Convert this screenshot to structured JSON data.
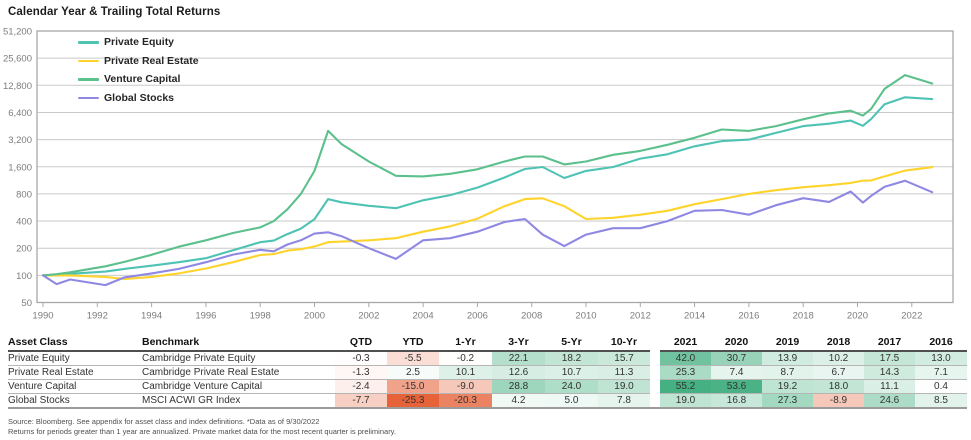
{
  "title": "Calendar Year & Trailing Total Returns",
  "chart_data": {
    "type": "line",
    "y_scale": "log2",
    "grid": "horizontal",
    "legend_position": "top-left-inside",
    "x_range": [
      1989.78,
      2023.5
    ],
    "y_range": [
      50,
      51200
    ],
    "x_ticks": [
      1990,
      1992,
      1994,
      1996,
      1998,
      2000,
      2002,
      2004,
      2006,
      2008,
      2010,
      2012,
      2014,
      2016,
      2018,
      2020,
      2022
    ],
    "y_ticks": [
      51200,
      25600,
      12800,
      6400,
      3200,
      1600,
      800,
      400,
      200,
      100,
      50
    ],
    "y_tick_labels": [
      "51,200",
      "25,600",
      "12,800",
      "6,400",
      "3,200",
      "1,600",
      "800",
      "400",
      "200",
      "100",
      "50"
    ],
    "x": [
      1990,
      1990.5,
      1991,
      1992.3,
      1993,
      1994,
      1995,
      1996,
      1997,
      1998,
      1998.5,
      1999,
      1999.5,
      2000,
      2000.5,
      2001,
      2002,
      2003,
      2004,
      2005,
      2006,
      2007,
      2007.75,
      2008.4,
      2009.2,
      2010,
      2011,
      2012,
      2013,
      2014,
      2015,
      2016,
      2017,
      2018,
      2018.95,
      2019.75,
      2020.2,
      2020.5,
      2021,
      2021.75,
      2022.75
    ],
    "series": [
      {
        "name": "Private Equity",
        "color": "#4ec3b4",
        "values": [
          100,
          101,
          104,
          110,
          118,
          128,
          140,
          155,
          190,
          233,
          243,
          287,
          330,
          420,
          700,
          645,
          590,
          555,
          680,
          775,
          940,
          1215,
          1510,
          1590,
          1200,
          1440,
          1590,
          1970,
          2200,
          2700,
          3080,
          3200,
          3800,
          4520,
          4800,
          5200,
          4550,
          5400,
          7900,
          9430,
          9000
        ]
      },
      {
        "name": "Private Real Estate",
        "color": "#fed42c",
        "values": [
          100,
          100,
          100,
          96,
          91,
          96,
          105,
          119,
          140,
          168,
          172,
          188,
          195,
          209,
          233,
          237,
          245,
          258,
          305,
          350,
          425,
          585,
          700,
          715,
          585,
          421,
          435,
          470,
          520,
          615,
          700,
          800,
          880,
          950,
          1000,
          1060,
          1120,
          1130,
          1250,
          1450,
          1580
        ]
      },
      {
        "name": "Venture Capital",
        "color": "#5cc08d",
        "values": [
          100,
          103,
          108,
          126,
          141,
          169,
          208,
          245,
          295,
          340,
          400,
          540,
          800,
          1440,
          4000,
          2850,
          1830,
          1270,
          1250,
          1335,
          1500,
          1830,
          2080,
          2080,
          1700,
          1830,
          2170,
          2400,
          2800,
          3350,
          4140,
          4000,
          4520,
          5370,
          6250,
          6700,
          5900,
          7000,
          11700,
          16600,
          13400
        ]
      },
      {
        "name": "Global Stocks",
        "color": "#8f88e3",
        "values": [
          100,
          80,
          90,
          78,
          95,
          105,
          118,
          140,
          170,
          192,
          185,
          220,
          245,
          290,
          300,
          272,
          200,
          152,
          245,
          258,
          305,
          390,
          421,
          283,
          211,
          283,
          333,
          333,
          400,
          520,
          530,
          470,
          600,
          717,
          653,
          850,
          640,
          760,
          960,
          1120,
          835
        ]
      }
    ]
  },
  "table": {
    "columns": [
      "Asset Class",
      "Benchmark",
      "QTD",
      "YTD",
      "1-Yr",
      "3-Yr",
      "5-Yr",
      "10-Yr",
      "2021",
      "2020",
      "2019",
      "2018",
      "2017",
      "2016"
    ],
    "rows": [
      {
        "asset_class": "Private Equity",
        "benchmark": "Cambridge Private Equity",
        "values": [
          -0.3,
          -5.5,
          -0.2,
          22.1,
          18.2,
          15.7,
          42.0,
          30.7,
          13.9,
          10.2,
          17.5,
          13.0
        ]
      },
      {
        "asset_class": "Private Real Estate",
        "benchmark": "Cambridge Private Real Estate",
        "values": [
          -1.3,
          2.5,
          10.1,
          12.6,
          10.7,
          11.3,
          25.3,
          7.4,
          8.7,
          6.7,
          14.3,
          7.1
        ]
      },
      {
        "asset_class": "Venture Capital",
        "benchmark": "Cambridge Venture Capital",
        "values": [
          -2.4,
          -15.0,
          -9.0,
          28.8,
          24.0,
          19.0,
          55.2,
          53.6,
          19.2,
          18.0,
          11.1,
          0.4
        ]
      },
      {
        "asset_class": "Global Stocks",
        "benchmark": "MSCI ACWI GR Index",
        "values": [
          -7.7,
          -25.3,
          -20.3,
          4.2,
          5.0,
          7.8,
          19.0,
          16.8,
          27.3,
          -8.9,
          24.6,
          8.5
        ]
      }
    ],
    "heatmap": {
      "positive_color": "#45b081",
      "negative_color": "#e55f35",
      "positive_max": 55.2,
      "negative_max": 26
    }
  },
  "footnotes": [
    "Source: Bloomberg. See appendix for asset class and index definitions. *Data as of 9/30/2022",
    "Returns for periods greater than 1 year are annualized. Private market data for the most recent quarter is preliminary."
  ]
}
